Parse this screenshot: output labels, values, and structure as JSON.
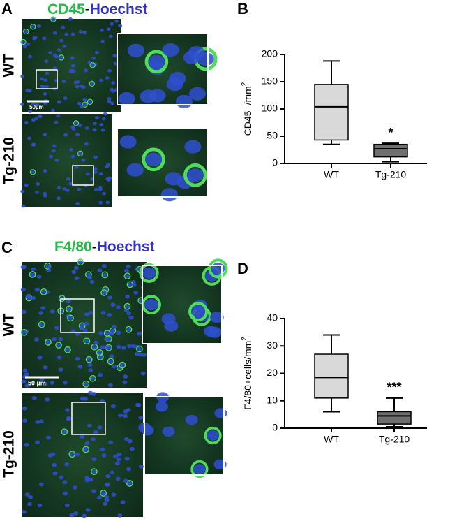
{
  "figure": {
    "panel_labels": [
      "A",
      "B",
      "C",
      "D"
    ],
    "stain_titles": [
      {
        "marker": "CD45",
        "separator": "-",
        "counterstain": "Hoechst"
      },
      {
        "marker": "F4/80",
        "separator": "-",
        "counterstain": "Hoechst"
      }
    ],
    "image_rows": [
      "WT",
      "Tg-210",
      "WT",
      "Tg-210"
    ],
    "scale_bars": [
      "50µm",
      "50 µm"
    ]
  },
  "chart_data": [
    {
      "type": "box",
      "y_label": "CD45+/mm",
      "y_label_sup": "2",
      "categories": [
        "WT",
        "Tg-210"
      ],
      "colors": [
        "#d9d9d9",
        "#6e6e6e"
      ],
      "boxes": [
        {
          "min": 35,
          "q1": 43,
          "median": 104,
          "q3": 145,
          "max": 188
        },
        {
          "min": 3,
          "q1": 12,
          "median": 27,
          "q3": 35,
          "max": 37
        }
      ],
      "annotations": [
        null,
        "*"
      ],
      "ylim": [
        0,
        200
      ],
      "yticks": [
        0,
        50,
        100,
        150,
        200
      ]
    },
    {
      "type": "box",
      "y_label": "F4/80+cells/mm",
      "y_label_sup": "2",
      "categories": [
        "WT",
        "Tg-210"
      ],
      "colors": [
        "#d9d9d9",
        "#6e6e6e"
      ],
      "boxes": [
        {
          "min": 6,
          "q1": 11,
          "median": 18.5,
          "q3": 27,
          "max": 34
        },
        {
          "min": 0.5,
          "q1": 1.5,
          "median": 4.5,
          "q3": 6,
          "max": 11
        }
      ],
      "annotations": [
        null,
        "***"
      ],
      "ylim": [
        0,
        40
      ],
      "yticks": [
        0,
        10,
        20,
        30,
        40
      ]
    }
  ]
}
